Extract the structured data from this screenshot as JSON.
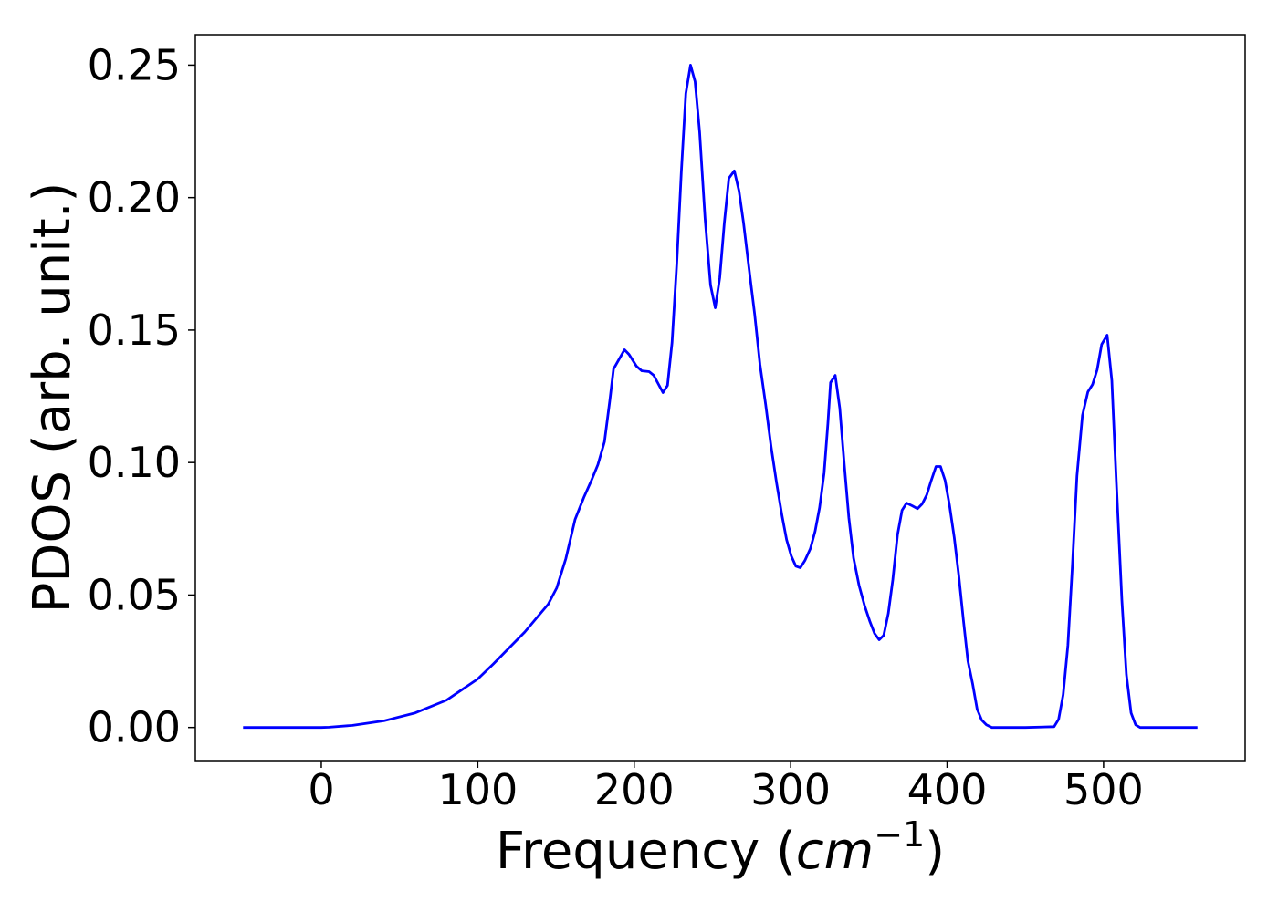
{
  "chart_data": {
    "type": "line",
    "xlabel": [
      "Frequency (",
      "cm",
      "−1",
      ")"
    ],
    "ylabel": "PDOS (arb. unit.)",
    "x": [
      -50,
      -25,
      0,
      5,
      20,
      40,
      60,
      80,
      100,
      110,
      120,
      130,
      140,
      145,
      150.5,
      156.3,
      162.2,
      168,
      172.7,
      176.8,
      181,
      184.4,
      186.8,
      193.8,
      196.7,
      201.4,
      204.9,
      209.6,
      212.5,
      218.4,
      221.3,
      224.2,
      227.2,
      230.1,
      233,
      236,
      238.9,
      241.8,
      245.3,
      248.8,
      251.8,
      254.7,
      257.6,
      260.5,
      264,
      267,
      269.9,
      273.4,
      277,
      280.4,
      284,
      287.5,
      291,
      294.5,
      297.4,
      300.4,
      303.3,
      306.2,
      309.1,
      312.6,
      315.6,
      318.5,
      321.4,
      323.8,
      325.5,
      328.5,
      331.4,
      334.3,
      337.2,
      340.2,
      343.7,
      347.2,
      350.7,
      353.6,
      356.6,
      359.5,
      362.4,
      365.3,
      368.3,
      371.2,
      374.1,
      377.6,
      381.1,
      384.1,
      387,
      389.9,
      392.9,
      395.8,
      398.7,
      401.6,
      404.6,
      407.5,
      410.4,
      413.3,
      416.3,
      419.2,
      422.1,
      425.1,
      428.6,
      450,
      468.4,
      471.3,
      474.2,
      477.2,
      480.1,
      483,
      486.5,
      490,
      493,
      495.9,
      498.8,
      502.3,
      505.3,
      508.2,
      511.7,
      514.6,
      517.6,
      520.5,
      523.4,
      540,
      560
    ],
    "series": [
      {
        "name": "PDOS",
        "color": "#0000ff",
        "values": [
          0,
          0,
          0,
          0.0001,
          0.0008,
          0.0025,
          0.0055,
          0.0103,
          0.0183,
          0.024,
          0.03,
          0.036,
          0.043,
          0.0465,
          0.0527,
          0.0637,
          0.0785,
          0.0871,
          0.0933,
          0.0992,
          0.1078,
          0.1233,
          0.1353,
          0.1426,
          0.1408,
          0.1364,
          0.1346,
          0.1343,
          0.1329,
          0.1264,
          0.1291,
          0.1453,
          0.1749,
          0.2094,
          0.2393,
          0.25,
          0.2438,
          0.2249,
          0.1921,
          0.167,
          0.1584,
          0.1698,
          0.1904,
          0.2073,
          0.2101,
          0.2025,
          0.1904,
          0.1732,
          0.156,
          0.137,
          0.122,
          0.106,
          0.0923,
          0.0799,
          0.0709,
          0.0647,
          0.0609,
          0.0603,
          0.063,
          0.0675,
          0.074,
          0.083,
          0.0961,
          0.1147,
          0.1302,
          0.1329,
          0.1205,
          0.0992,
          0.0792,
          0.064,
          0.0537,
          0.0461,
          0.0399,
          0.0355,
          0.0331,
          0.0348,
          0.043,
          0.0558,
          0.0727,
          0.082,
          0.0847,
          0.0837,
          0.0826,
          0.0844,
          0.0878,
          0.0933,
          0.0985,
          0.0985,
          0.0933,
          0.0837,
          0.0716,
          0.0572,
          0.0406,
          0.0251,
          0.0165,
          0.0069,
          0.0028,
          0.001,
          0,
          0,
          0.0003,
          0.0031,
          0.0124,
          0.031,
          0.0613,
          0.095,
          0.1178,
          0.1267,
          0.1295,
          0.135,
          0.1446,
          0.1481,
          0.1309,
          0.0923,
          0.0482,
          0.02,
          0.0055,
          0.001,
          0,
          0,
          0
        ]
      }
    ],
    "xlim": [
      -80.5,
      590.5
    ],
    "xticks": [
      0,
      100,
      200,
      300,
      400,
      500
    ],
    "ylim": [
      -0.0125,
      0.2615
    ],
    "yticks": [
      {
        "value": 0,
        "label": "0.00"
      },
      0.05,
      {
        "value": 0.1,
        "label": "0.10"
      },
      0.15,
      {
        "value": 0.2,
        "label": "0.20"
      },
      0.25
    ],
    "grid": false
  }
}
